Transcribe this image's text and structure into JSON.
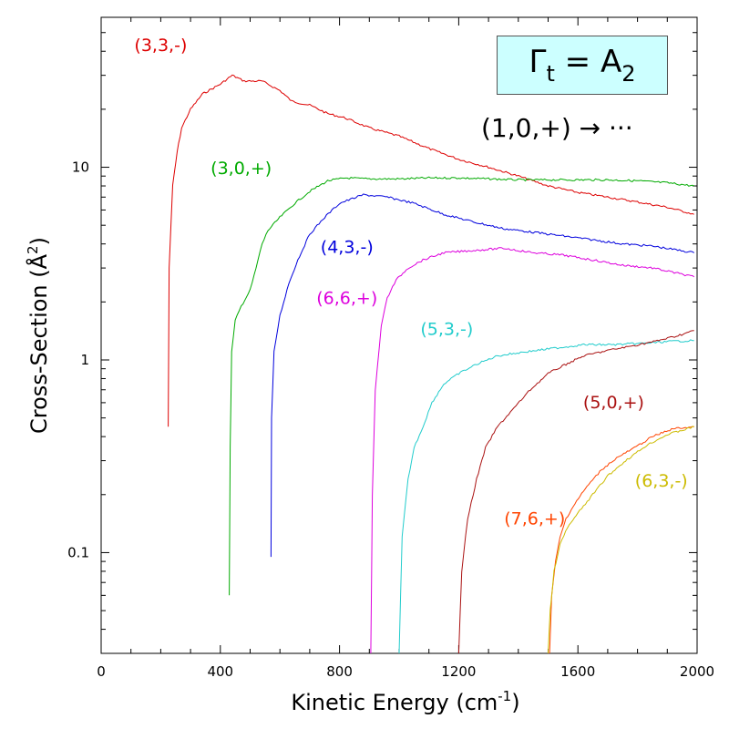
{
  "chart_data": {
    "type": "line",
    "xlabel": "Kinetic Energy (cm",
    "xlabel_sup": "-1",
    "xlabel_end": ")",
    "ylabel": "Cross-Section (Å",
    "ylabel_sup": "2",
    "ylabel_end": ")",
    "xlim": [
      0,
      2000
    ],
    "ylim": [
      0.03,
      60
    ],
    "yscale": "log",
    "x_ticks": [
      0,
      400,
      800,
      1200,
      1600,
      2000
    ],
    "x_tick_labels": [
      "0",
      "400",
      "800",
      "1200",
      "1600",
      "2000"
    ],
    "y_ticks": [
      0.1,
      1,
      10
    ],
    "y_tick_labels": [
      "0.1",
      "1",
      "10"
    ],
    "annotation": {
      "symmetry_base": "Γ",
      "symmetry_sub": "t",
      "symmetry_eq": " = A",
      "symmetry_sub2": "2",
      "transition": "(1,0,+) → ···"
    },
    "series": [
      {
        "name": "(3,3,-)",
        "color": "#dd0000",
        "label_x": 200,
        "label_y": 40,
        "points": [
          [
            225,
            0.45
          ],
          [
            228,
            3
          ],
          [
            240,
            8
          ],
          [
            255,
            12
          ],
          [
            270,
            16
          ],
          [
            300,
            20
          ],
          [
            340,
            24
          ],
          [
            400,
            27
          ],
          [
            440,
            30
          ],
          [
            480,
            28
          ],
          [
            540,
            28
          ],
          [
            600,
            25
          ],
          [
            640,
            22
          ],
          [
            700,
            21
          ],
          [
            760,
            19
          ],
          [
            820,
            18
          ],
          [
            900,
            16
          ],
          [
            1000,
            14.5
          ],
          [
            1100,
            12.5
          ],
          [
            1200,
            11
          ],
          [
            1300,
            10
          ],
          [
            1400,
            9
          ],
          [
            1500,
            8
          ],
          [
            1600,
            7.4
          ],
          [
            1700,
            7
          ],
          [
            1800,
            6.6
          ],
          [
            1900,
            6.2
          ],
          [
            1990,
            5.7
          ]
        ]
      },
      {
        "name": "(3,0,+)",
        "color": "#00aa00",
        "label_x": 470,
        "label_y": 9.2,
        "points": [
          [
            430,
            0.06
          ],
          [
            433,
            0.35
          ],
          [
            438,
            1.1
          ],
          [
            450,
            1.6
          ],
          [
            470,
            1.9
          ],
          [
            500,
            2.3
          ],
          [
            520,
            3
          ],
          [
            540,
            4
          ],
          [
            560,
            4.7
          ],
          [
            600,
            5.5
          ],
          [
            650,
            6.5
          ],
          [
            700,
            7.5
          ],
          [
            760,
            8.5
          ],
          [
            820,
            8.8
          ],
          [
            900,
            8.7
          ],
          [
            1000,
            8.7
          ],
          [
            1100,
            8.8
          ],
          [
            1200,
            8.8
          ],
          [
            1300,
            8.7
          ],
          [
            1400,
            8.6
          ],
          [
            1500,
            8.6
          ],
          [
            1600,
            8.6
          ],
          [
            1700,
            8.6
          ],
          [
            1800,
            8.5
          ],
          [
            1900,
            8.3
          ],
          [
            1990,
            8.0
          ]
        ]
      },
      {
        "name": "(4,3,-)",
        "color": "#0000dd",
        "label_x": 825,
        "label_y": 3.6,
        "points": [
          [
            570,
            0.095
          ],
          [
            572,
            0.5
          ],
          [
            580,
            1.1
          ],
          [
            600,
            1.7
          ],
          [
            630,
            2.5
          ],
          [
            660,
            3.3
          ],
          [
            700,
            4.5
          ],
          [
            750,
            5.5
          ],
          [
            800,
            6.5
          ],
          [
            880,
            7.2
          ],
          [
            960,
            7
          ],
          [
            1050,
            6.5
          ],
          [
            1150,
            5.7
          ],
          [
            1250,
            5.2
          ],
          [
            1350,
            4.8
          ],
          [
            1450,
            4.6
          ],
          [
            1550,
            4.4
          ],
          [
            1650,
            4.2
          ],
          [
            1750,
            4
          ],
          [
            1850,
            3.9
          ],
          [
            1990,
            3.6
          ]
        ]
      },
      {
        "name": "(6,6,+)",
        "color": "#dd00dd",
        "label_x": 825,
        "label_y": 1.95,
        "points": [
          [
            905,
            0.03
          ],
          [
            910,
            0.2
          ],
          [
            920,
            0.7
          ],
          [
            940,
            1.5
          ],
          [
            960,
            2.1
          ],
          [
            990,
            2.6
          ],
          [
            1030,
            3
          ],
          [
            1080,
            3.3
          ],
          [
            1150,
            3.6
          ],
          [
            1250,
            3.7
          ],
          [
            1350,
            3.8
          ],
          [
            1450,
            3.6
          ],
          [
            1550,
            3.5
          ],
          [
            1650,
            3.3
          ],
          [
            1750,
            3.1
          ],
          [
            1850,
            3
          ],
          [
            1990,
            2.7
          ]
        ]
      },
      {
        "name": "(5,3,-)",
        "color": "#22cccc",
        "label_x": 1160,
        "label_y": 1.35,
        "points": [
          [
            1000,
            0.03
          ],
          [
            1010,
            0.12
          ],
          [
            1030,
            0.24
          ],
          [
            1050,
            0.35
          ],
          [
            1080,
            0.45
          ],
          [
            1110,
            0.6
          ],
          [
            1150,
            0.75
          ],
          [
            1200,
            0.85
          ],
          [
            1260,
            0.95
          ],
          [
            1330,
            1.05
          ],
          [
            1420,
            1.1
          ],
          [
            1520,
            1.15
          ],
          [
            1620,
            1.2
          ],
          [
            1720,
            1.2
          ],
          [
            1820,
            1.22
          ],
          [
            1920,
            1.25
          ],
          [
            1990,
            1.26
          ]
        ]
      },
      {
        "name": "(5,0,+)",
        "color": "#aa1111",
        "label_x": 1720,
        "label_y": 0.56,
        "points": [
          [
            1200,
            0.03
          ],
          [
            1210,
            0.08
          ],
          [
            1230,
            0.15
          ],
          [
            1260,
            0.24
          ],
          [
            1290,
            0.35
          ],
          [
            1330,
            0.45
          ],
          [
            1380,
            0.55
          ],
          [
            1440,
            0.7
          ],
          [
            1500,
            0.85
          ],
          [
            1560,
            0.95
          ],
          [
            1620,
            1.05
          ],
          [
            1700,
            1.12
          ],
          [
            1780,
            1.18
          ],
          [
            1860,
            1.25
          ],
          [
            1930,
            1.33
          ],
          [
            1990,
            1.42
          ]
        ]
      },
      {
        "name": "(7,6,+)",
        "color": "#ff4400",
        "label_x": 1455,
        "label_y": 0.14,
        "points": [
          [
            1505,
            0.03
          ],
          [
            1512,
            0.06
          ],
          [
            1525,
            0.09
          ],
          [
            1540,
            0.12
          ],
          [
            1560,
            0.15
          ],
          [
            1590,
            0.18
          ],
          [
            1630,
            0.22
          ],
          [
            1680,
            0.27
          ],
          [
            1730,
            0.31
          ],
          [
            1790,
            0.35
          ],
          [
            1850,
            0.4
          ],
          [
            1920,
            0.44
          ],
          [
            1990,
            0.45
          ]
        ]
      },
      {
        "name": "(6,3,-)",
        "color": "#ccbb00",
        "label_x": 1880,
        "label_y": 0.22,
        "points": [
          [
            1500,
            0.03
          ],
          [
            1507,
            0.05
          ],
          [
            1520,
            0.08
          ],
          [
            1540,
            0.11
          ],
          [
            1565,
            0.135
          ],
          [
            1600,
            0.16
          ],
          [
            1650,
            0.2
          ],
          [
            1700,
            0.25
          ],
          [
            1760,
            0.3
          ],
          [
            1830,
            0.36
          ],
          [
            1900,
            0.41
          ],
          [
            1990,
            0.45
          ]
        ]
      }
    ]
  }
}
